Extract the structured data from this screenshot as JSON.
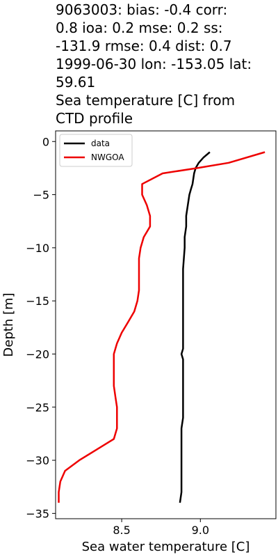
{
  "header": {
    "title_lines": [
      "9063003: bias: -0.4  corr:",
      "0.8  ioa: 0.2  mse: 0.2  ss:",
      "-131.9  rmse: 0.4  dist: 0.7",
      "1999-06-30 lon: -153.05 lat:",
      "59.61",
      "Sea temperature [C] from",
      "CTD profile"
    ]
  },
  "chart_data": {
    "type": "line",
    "title": "9063003: bias: -0.4  corr: 0.8  ioa: 0.2  mse: 0.2  ss: -131.9  rmse: 0.4  dist: 0.7 1999-06-30 lon: -153.05 lat: 59.61 Sea temperature [C] from CTD profile",
    "xlabel": "Sea water temperature [C]",
    "ylabel": "Depth [m]",
    "xlim": [
      8.08,
      9.48
    ],
    "ylim": [
      -35.5,
      1.0
    ],
    "xticks": [
      8.5,
      9.0
    ],
    "xtick_labels": [
      "8.5",
      "9.0"
    ],
    "yticks": [
      0,
      -5,
      -10,
      -15,
      -20,
      -25,
      -30,
      -35
    ],
    "ytick_labels": [
      "0",
      "−5",
      "−10",
      "−15",
      "−20",
      "−25",
      "−30",
      "−35"
    ],
    "grid": false,
    "legend_position": "top-left",
    "series": [
      {
        "name": "data",
        "color": "#000000",
        "points": [
          [
            9.06,
            -1
          ],
          [
            9.02,
            -1.5
          ],
          [
            8.99,
            -2
          ],
          [
            8.97,
            -2.5
          ],
          [
            8.96,
            -3
          ],
          [
            8.95,
            -4
          ],
          [
            8.94,
            -4.5
          ],
          [
            8.93,
            -5
          ],
          [
            8.92,
            -6
          ],
          [
            8.91,
            -7
          ],
          [
            8.91,
            -8
          ],
          [
            8.9,
            -9
          ],
          [
            8.9,
            -10
          ],
          [
            8.89,
            -12
          ],
          [
            8.89,
            -14
          ],
          [
            8.89,
            -16
          ],
          [
            8.89,
            -18
          ],
          [
            8.89,
            -19.5
          ],
          [
            8.88,
            -20
          ],
          [
            8.89,
            -20.5
          ],
          [
            8.89,
            -22
          ],
          [
            8.89,
            -24
          ],
          [
            8.89,
            -26
          ],
          [
            8.88,
            -27
          ],
          [
            8.88,
            -29
          ],
          [
            8.88,
            -31
          ],
          [
            8.88,
            -33
          ],
          [
            8.87,
            -34
          ]
        ]
      },
      {
        "name": "NWGOA",
        "color": "#ee0000",
        "points": [
          [
            9.41,
            -1
          ],
          [
            9.18,
            -2
          ],
          [
            8.98,
            -2.5
          ],
          [
            8.76,
            -3
          ],
          [
            8.63,
            -4
          ],
          [
            8.63,
            -5
          ],
          [
            8.66,
            -6
          ],
          [
            8.68,
            -7
          ],
          [
            8.68,
            -8
          ],
          [
            8.64,
            -9
          ],
          [
            8.62,
            -10
          ],
          [
            8.61,
            -11
          ],
          [
            8.61,
            -12
          ],
          [
            8.61,
            -13
          ],
          [
            8.61,
            -14
          ],
          [
            8.6,
            -15
          ],
          [
            8.58,
            -16
          ],
          [
            8.54,
            -17
          ],
          [
            8.5,
            -18
          ],
          [
            8.47,
            -19
          ],
          [
            8.45,
            -20
          ],
          [
            8.45,
            -21
          ],
          [
            8.45,
            -22
          ],
          [
            8.45,
            -23
          ],
          [
            8.46,
            -24
          ],
          [
            8.47,
            -25
          ],
          [
            8.47,
            -26
          ],
          [
            8.47,
            -27
          ],
          [
            8.45,
            -28
          ],
          [
            8.34,
            -29
          ],
          [
            8.23,
            -30
          ],
          [
            8.14,
            -31
          ],
          [
            8.11,
            -32
          ],
          [
            8.1,
            -33
          ],
          [
            8.1,
            -34
          ]
        ]
      }
    ]
  }
}
